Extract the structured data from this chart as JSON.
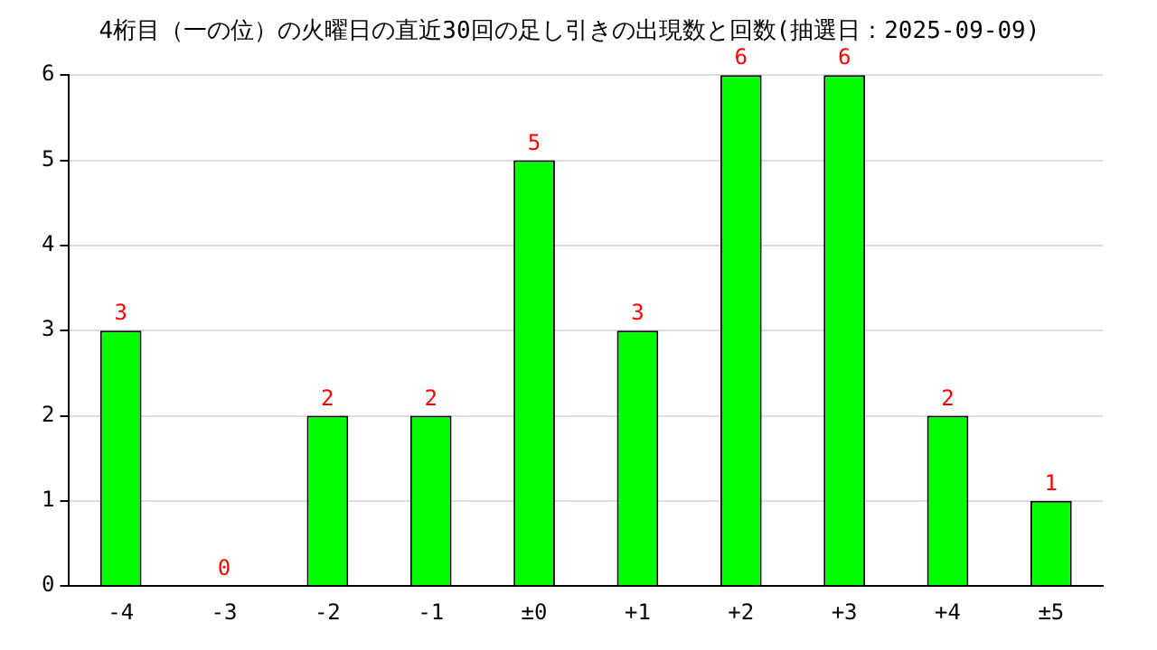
{
  "chart_data": {
    "type": "bar",
    "title": "4桁目（一の位）の火曜日の直近30回の足し引きの出現数と回数(抽選日：2025-09-09)",
    "categories": [
      "-4",
      "-3",
      "-2",
      "-1",
      "±0",
      "+1",
      "+2",
      "+3",
      "+4",
      "±5"
    ],
    "values": [
      3,
      0,
      2,
      2,
      5,
      3,
      6,
      6,
      2,
      1
    ],
    "color": "#00ff00",
    "ylim": [
      0,
      6
    ],
    "yticks": [
      0,
      1,
      2,
      3,
      4,
      5,
      6
    ],
    "grid": "y",
    "data_labels": true,
    "legend": false
  }
}
